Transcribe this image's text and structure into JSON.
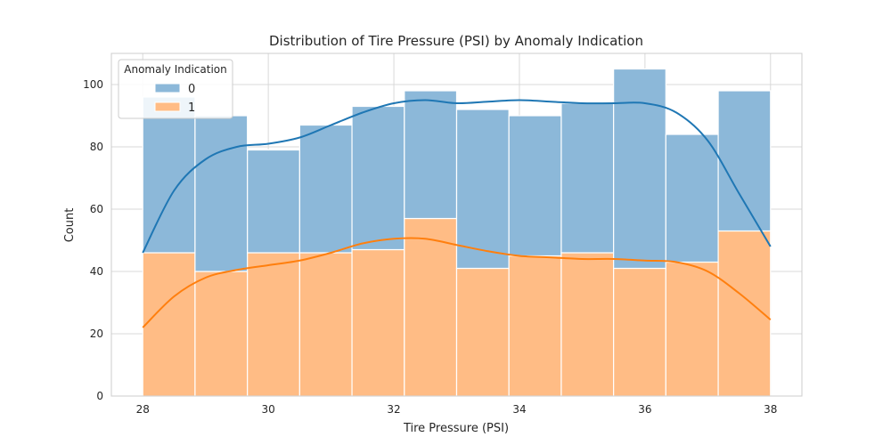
{
  "chart_data": {
    "type": "bar",
    "title": "Distribution of Tire Pressure (PSI) by Anomaly Indication",
    "xlabel": "Tire Pressure (PSI)",
    "ylabel": "Count",
    "xlim": [
      27.5,
      38.5
    ],
    "ylim": [
      0,
      110
    ],
    "xticks": [
      "28",
      "30",
      "32",
      "34",
      "36",
      "38"
    ],
    "yticks": [
      "0",
      "20",
      "40",
      "60",
      "80",
      "100"
    ],
    "grid": true,
    "stacked": true,
    "bin_edges": [
      28.0,
      28.833,
      29.667,
      30.5,
      31.333,
      32.167,
      33.0,
      33.833,
      34.667,
      35.5,
      36.333,
      37.167,
      38.0
    ],
    "legend": {
      "title": "Anomaly Indication",
      "position": "upper-left"
    },
    "series": [
      {
        "name": "0",
        "color": "#1f77b4",
        "fill": "#8cb8d9",
        "values": [
          50,
          50,
          33,
          41,
          46,
          41,
          51,
          45,
          48,
          64,
          41,
          45
        ],
        "kde": [
          [
            28.0,
            46
          ],
          [
            28.5,
            66
          ],
          [
            29.0,
            76
          ],
          [
            29.5,
            80
          ],
          [
            30.0,
            81
          ],
          [
            30.5,
            83
          ],
          [
            31.0,
            87
          ],
          [
            31.5,
            91
          ],
          [
            32.0,
            94
          ],
          [
            32.5,
            95
          ],
          [
            33.0,
            94
          ],
          [
            33.5,
            94.5
          ],
          [
            34.0,
            95
          ],
          [
            34.5,
            94.5
          ],
          [
            35.0,
            94
          ],
          [
            35.5,
            94
          ],
          [
            36.0,
            94
          ],
          [
            36.5,
            91
          ],
          [
            37.0,
            82
          ],
          [
            37.5,
            65
          ],
          [
            38.0,
            48
          ]
        ]
      },
      {
        "name": "1",
        "color": "#ff7f0e",
        "fill": "#ffbc85",
        "values": [
          46,
          40,
          46,
          46,
          47,
          57,
          41,
          45,
          46,
          41,
          43,
          53
        ],
        "kde": [
          [
            28.0,
            22
          ],
          [
            28.5,
            32
          ],
          [
            29.0,
            38
          ],
          [
            29.5,
            40.5
          ],
          [
            30.0,
            42
          ],
          [
            30.5,
            43.5
          ],
          [
            31.0,
            46
          ],
          [
            31.5,
            49
          ],
          [
            32.0,
            50.5
          ],
          [
            32.5,
            50.5
          ],
          [
            33.0,
            48.5
          ],
          [
            33.5,
            46.5
          ],
          [
            34.0,
            45
          ],
          [
            34.5,
            44.5
          ],
          [
            35.0,
            44
          ],
          [
            35.5,
            44
          ],
          [
            36.0,
            43.5
          ],
          [
            36.5,
            43
          ],
          [
            37.0,
            40
          ],
          [
            37.5,
            33
          ],
          [
            38.0,
            24.5
          ]
        ]
      }
    ]
  }
}
